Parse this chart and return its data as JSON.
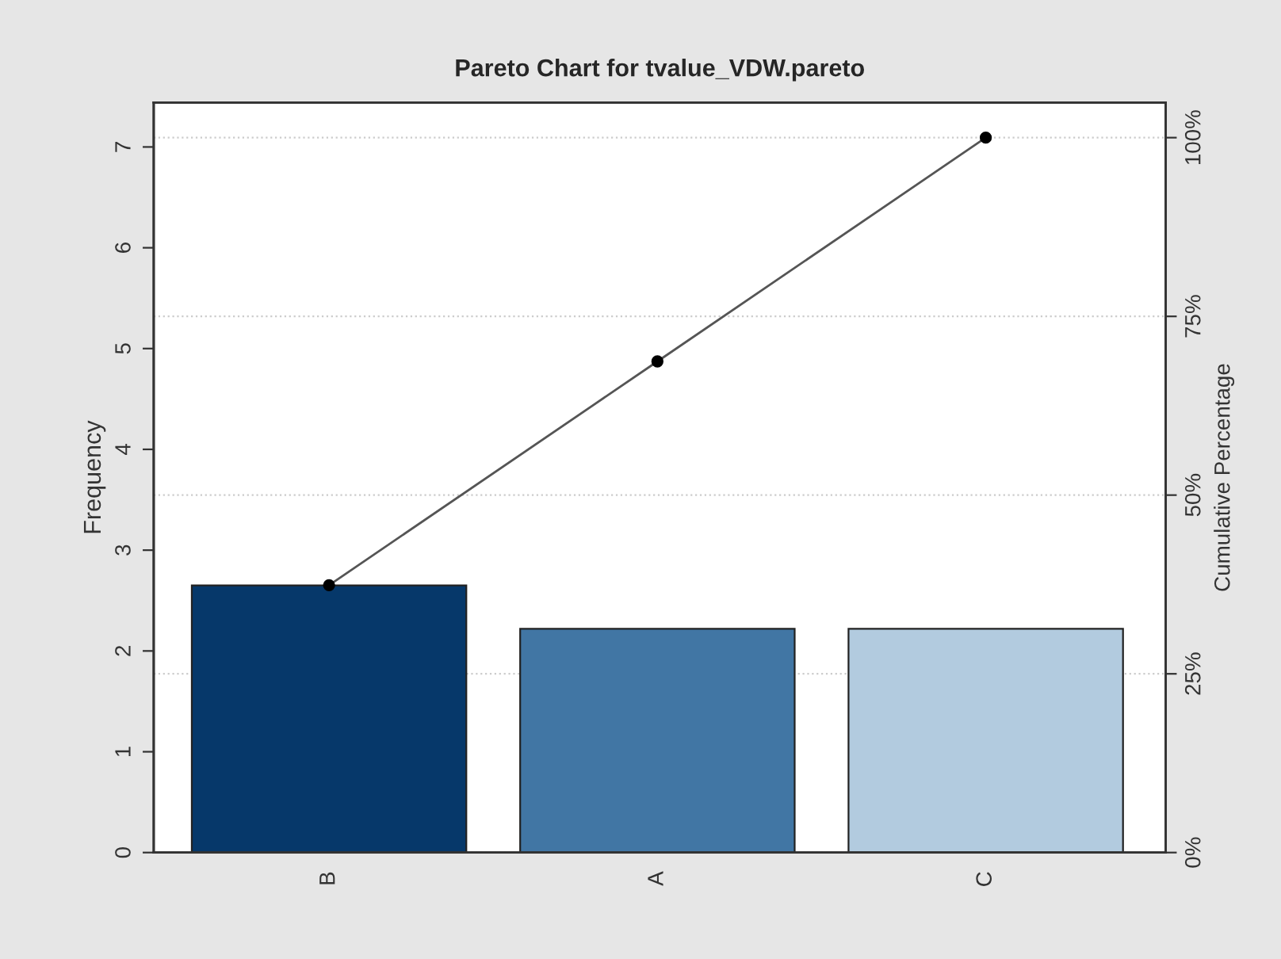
{
  "chart_data": {
    "type": "bar",
    "title": "Pareto Chart for tvalue_VDW.pareto",
    "ylabel": "Frequency",
    "y2label": "Cumulative Percentage",
    "categories": [
      "B",
      "A",
      "C"
    ],
    "series": [
      {
        "colors": [
          "#06386a",
          "#4176a4",
          "#b2cbdf"
        ],
        "values": [
          2.65,
          2.22,
          2.22
        ]
      },
      {
        "type": "line",
        "axis": "y2",
        "color": "#555555",
        "marker": "circle",
        "values": [
          37.4,
          68.7,
          100
        ]
      }
    ],
    "ylim": [
      0,
      7.44
    ],
    "yticks": [
      0,
      1,
      2,
      3,
      4,
      5,
      6,
      7
    ],
    "y2lim": [
      0,
      104.9
    ],
    "y2ticks": [
      {
        "value": 0,
        "label": "0%"
      },
      {
        "value": 25,
        "label": "25%"
      },
      {
        "value": 50,
        "label": "50%"
      },
      {
        "value": 75,
        "label": "75%"
      },
      {
        "value": 100,
        "label": "100%"
      }
    ],
    "grid": "y"
  }
}
